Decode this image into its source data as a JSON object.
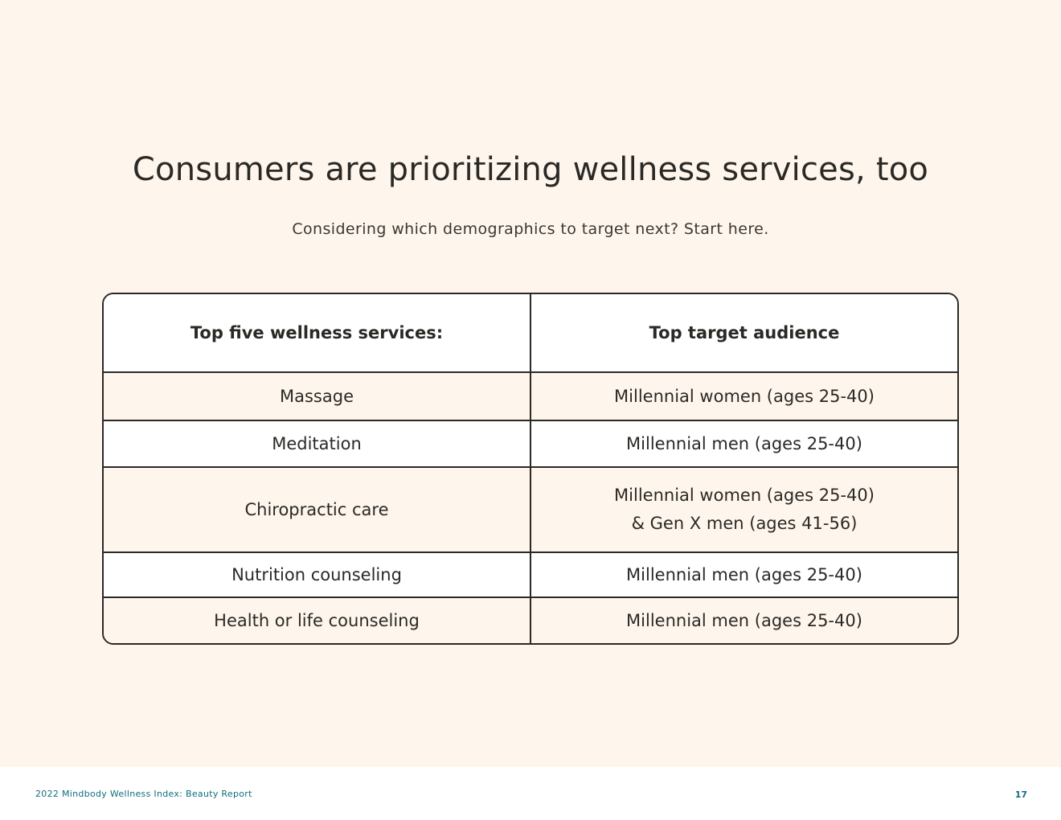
{
  "title": "Consumers are prioritizing wellness services, too",
  "subtitle": "Considering which demographics to target next? Start here.",
  "table": {
    "headers": [
      "Top five wellness services:",
      "Top target audience"
    ],
    "rows": [
      {
        "service": "Massage",
        "audience": [
          "Millennial women (ages 25-40)"
        ]
      },
      {
        "service": "Meditation",
        "audience": [
          "Millennial men (ages 25-40)"
        ]
      },
      {
        "service": "Chiropractic care",
        "audience": [
          "Millennial women (ages 25-40)",
          "& Gen X men (ages 41-56)"
        ]
      },
      {
        "service": "Nutrition counseling",
        "audience": [
          "Millennial men (ages 25-40)"
        ]
      },
      {
        "service": "Health or life counseling",
        "audience": [
          "Millennial men (ages 25-40)"
        ]
      }
    ]
  },
  "footer": {
    "report_name": "2022 Mindbody Wellness Index: Beauty Report",
    "page_number": "17"
  }
}
